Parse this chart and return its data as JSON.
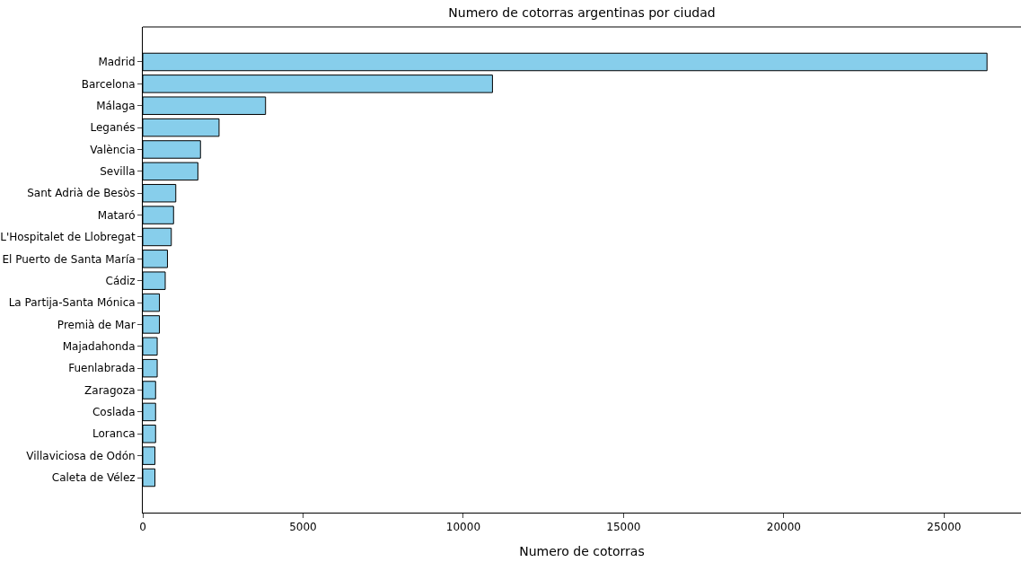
{
  "chart_data": {
    "type": "bar",
    "orientation": "horizontal",
    "title": "Numero de cotorras argentinas por ciudad",
    "xlabel": "Numero de cotorras",
    "categories": [
      "Madrid",
      "Barcelona",
      "Málaga",
      "Leganés",
      "València",
      "Sevilla",
      "Sant Adrià de Besòs",
      "Mataró",
      "L'Hospitalet de Llobregat",
      "El Puerto de Santa María",
      "Cádiz",
      "La Partija-Santa Mónica",
      "Premià de Mar",
      "Majadahonda",
      "Fuenlabrada",
      "Zaragoza",
      "Coslada",
      "Loranca",
      "Villaviciosa de Odón",
      "Caleta de Vélez"
    ],
    "values": [
      26340,
      10910,
      3830,
      2380,
      1800,
      1720,
      1030,
      960,
      890,
      770,
      700,
      520,
      520,
      450,
      450,
      400,
      400,
      400,
      380,
      380
    ],
    "color": "#87ceeb",
    "xlim": [
      0,
      27400
    ],
    "xticks": [
      0,
      5000,
      10000,
      15000,
      20000,
      25000
    ]
  }
}
